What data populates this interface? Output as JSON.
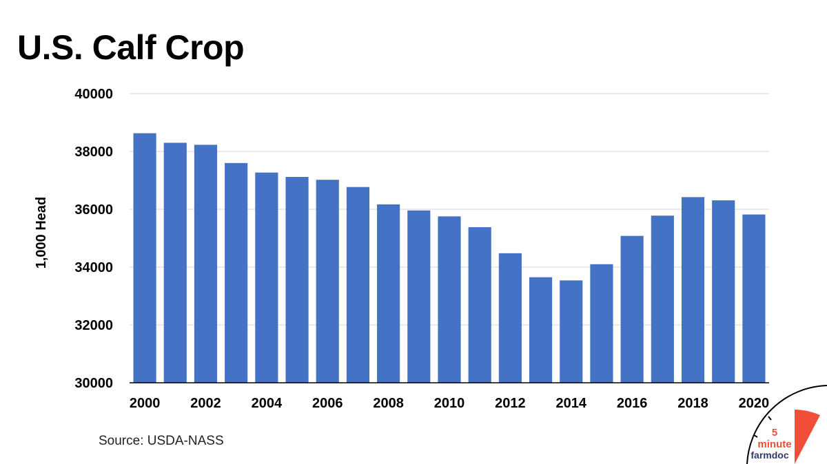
{
  "chart_data": {
    "type": "bar",
    "title": "U.S. Calf Crop",
    "xlabel": "",
    "ylabel": "1,000 Head",
    "ylim": [
      30000,
      40000
    ],
    "yticks": [
      "30000",
      "32000",
      "34000",
      "36000",
      "38000",
      "40000"
    ],
    "xtick_labels": [
      "2000",
      "2002",
      "2004",
      "2006",
      "2008",
      "2010",
      "2012",
      "2014",
      "2016",
      "2018",
      "2020"
    ],
    "categories": [
      "2000",
      "2001",
      "2002",
      "2003",
      "2004",
      "2005",
      "2006",
      "2007",
      "2008",
      "2009",
      "2010",
      "2011",
      "2012",
      "2013",
      "2014",
      "2015",
      "2016",
      "2017",
      "2018",
      "2019",
      "2020"
    ],
    "values": [
      38630,
      38300,
      38230,
      37600,
      37270,
      37120,
      37020,
      36770,
      36170,
      35960,
      35755,
      35380,
      34480,
      33650,
      33540,
      34100,
      35080,
      35780,
      36420,
      36310,
      35820
    ],
    "grid": true,
    "bar_color": "#4472C4"
  },
  "source": "Source: USDA-NASS",
  "logo": {
    "number": "5",
    "word1": "minute",
    "word2": "farmdoc",
    "accent": "#F04E37",
    "text_dark": "#2E3A6E"
  }
}
